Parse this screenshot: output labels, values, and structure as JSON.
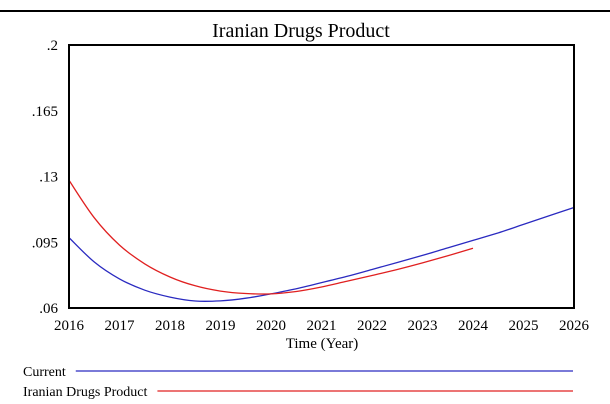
{
  "chart_data": {
    "type": "line",
    "title": "Iranian Drugs Product",
    "xlabel": "Time (Year)",
    "ylabel": "",
    "xlim": [
      2016,
      2026
    ],
    "ylim": [
      0.06,
      0.2
    ],
    "x_ticks": [
      "2016",
      "2017",
      "2018",
      "2019",
      "2020",
      "2021",
      "2022",
      "2023",
      "2024",
      "2025",
      "2026"
    ],
    "y_ticks": [
      {
        "value": 0.2,
        "label": ".2"
      },
      {
        "value": 0.165,
        "label": ".165"
      },
      {
        "value": 0.13,
        "label": ".13"
      },
      {
        "value": 0.095,
        "label": ".095"
      },
      {
        "value": 0.06,
        "label": ".06"
      }
    ],
    "grid": false,
    "legend": "bottom",
    "series": [
      {
        "name": "Current",
        "color": "#2a2ac0",
        "x": [
          2016,
          2016.5,
          2017,
          2017.5,
          2018,
          2018.5,
          2019,
          2019.5,
          2020,
          2020.5,
          2021,
          2021.5,
          2022,
          2022.5,
          2023,
          2023.5,
          2024,
          2024.5,
          2025,
          2025.5,
          2026
        ],
        "y": [
          0.0975,
          0.0845,
          0.0755,
          0.0695,
          0.0658,
          0.0637,
          0.0638,
          0.0652,
          0.0675,
          0.0703,
          0.0735,
          0.0768,
          0.0805,
          0.0842,
          0.088,
          0.092,
          0.096,
          0.1,
          0.1045,
          0.109,
          0.1135
        ]
      },
      {
        "name": "Iranian Drugs Product",
        "color": "#e02020",
        "x": [
          2016,
          2016.5,
          2017,
          2017.5,
          2018,
          2018.5,
          2019,
          2019.5,
          2020,
          2020.5,
          2021,
          2021.5,
          2022,
          2022.5,
          2023,
          2023.5,
          2024
        ],
        "y": [
          0.128,
          0.108,
          0.0935,
          0.0835,
          0.0765,
          0.0718,
          0.069,
          0.0677,
          0.0675,
          0.0688,
          0.0712,
          0.0742,
          0.0773,
          0.0805,
          0.084,
          0.0878,
          0.0918
        ]
      }
    ]
  }
}
